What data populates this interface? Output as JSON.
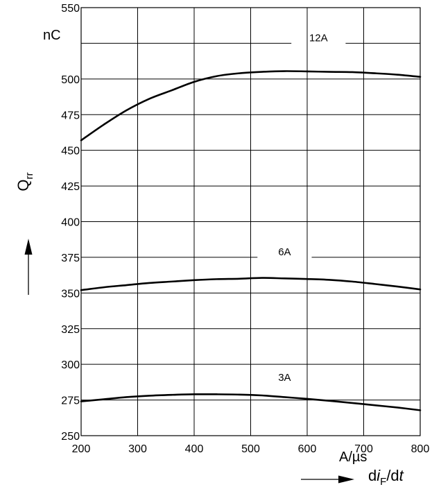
{
  "chart_data": {
    "type": "line",
    "xlim": [
      200,
      800
    ],
    "ylim": [
      250,
      550
    ],
    "x_ticks": [
      200,
      300,
      400,
      500,
      600,
      700,
      800
    ],
    "y_ticks": [
      250,
      275,
      300,
      325,
      350,
      375,
      400,
      425,
      450,
      475,
      500,
      525,
      550
    ],
    "y_tick_labels": [
      "250",
      "275",
      "300",
      "325",
      "350",
      "375",
      "400",
      "425",
      "450",
      "475",
      "500",
      "",
      "550"
    ],
    "grid": true,
    "x_unit": "A/µs",
    "y_unit": "nC",
    "xlabel": {
      "d": "d",
      "i": "i",
      "sub": "F",
      "rest": "/d",
      "t": "t"
    },
    "ylabel": {
      "main": "Q",
      "sub": "rr"
    },
    "series": [
      {
        "name": "12A",
        "label_at": [
          620,
          525
        ],
        "x": [
          200,
          240,
          280,
          320,
          360,
          400,
          440,
          480,
          520,
          560,
          600,
          640,
          680,
          720,
          760,
          800
        ],
        "y": [
          457,
          468,
          478,
          486,
          492,
          498,
          502,
          504,
          505,
          505.5,
          505.3,
          505,
          504.8,
          504,
          503,
          501.5
        ]
      },
      {
        "name": "6A",
        "label_at": [
          560,
          375
        ],
        "x": [
          200,
          240,
          280,
          320,
          360,
          400,
          440,
          480,
          520,
          560,
          600,
          640,
          680,
          720,
          760,
          800
        ],
        "y": [
          352,
          354,
          355.5,
          357,
          358,
          359,
          359.7,
          360,
          360.6,
          360.2,
          359.8,
          359.2,
          358,
          356.3,
          354.5,
          352.5
        ]
      },
      {
        "name": "3A",
        "label_at": [
          560,
          287
        ],
        "x": [
          200,
          240,
          280,
          320,
          360,
          400,
          440,
          480,
          520,
          560,
          600,
          640,
          680,
          720,
          760,
          800
        ],
        "y": [
          274,
          275.5,
          277,
          278,
          278.6,
          279,
          279,
          278.8,
          278.2,
          277,
          275.8,
          274.4,
          272.9,
          271.3,
          269.7,
          267.8
        ]
      }
    ]
  }
}
